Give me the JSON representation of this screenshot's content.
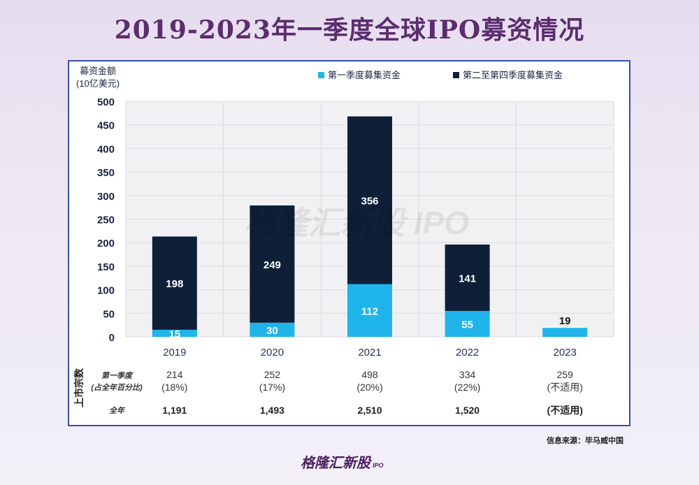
{
  "title": "2019-2023年一季度全球IPO募资情况",
  "chart_data": {
    "type": "bar",
    "stacked": true,
    "ylabel": "募资金额\n(10亿美元)",
    "ylabel_line1": "募资金额",
    "ylabel_line2": "(10亿美元)",
    "ylim": [
      0,
      500
    ],
    "yticks": [
      0,
      50,
      100,
      150,
      200,
      250,
      300,
      350,
      400,
      450,
      500
    ],
    "grid": true,
    "legend_position": "top",
    "categories": [
      "2019",
      "2020",
      "2021",
      "2022",
      "2023"
    ],
    "series": [
      {
        "name": "第一季度募集资金",
        "color": "#1fb4ea",
        "values": [
          15,
          30,
          112,
          55,
          19
        ]
      },
      {
        "name": "第二至第四季度募集资金",
        "color": "#0f1f38",
        "values": [
          198,
          249,
          356,
          141,
          null
        ]
      }
    ]
  },
  "table": {
    "side_label": "上市宗数",
    "row1_label_line1": "第一季度",
    "row1_label_line2": "(占全年百分比)",
    "row2_label": "全年",
    "q1_counts": [
      "214",
      "252",
      "498",
      "334",
      "259"
    ],
    "q1_pct": [
      "(18%)",
      "(17%)",
      "(20%)",
      "(22%)",
      "(不适用)"
    ],
    "full_year": [
      "1,191",
      "1,493",
      "2,510",
      "1,520",
      "(不适用)"
    ]
  },
  "watermark": "格隆汇新股 IPO",
  "source": "信息来源：毕马威中国",
  "logo": {
    "text": "格隆汇新股",
    "sub": "IPO"
  }
}
